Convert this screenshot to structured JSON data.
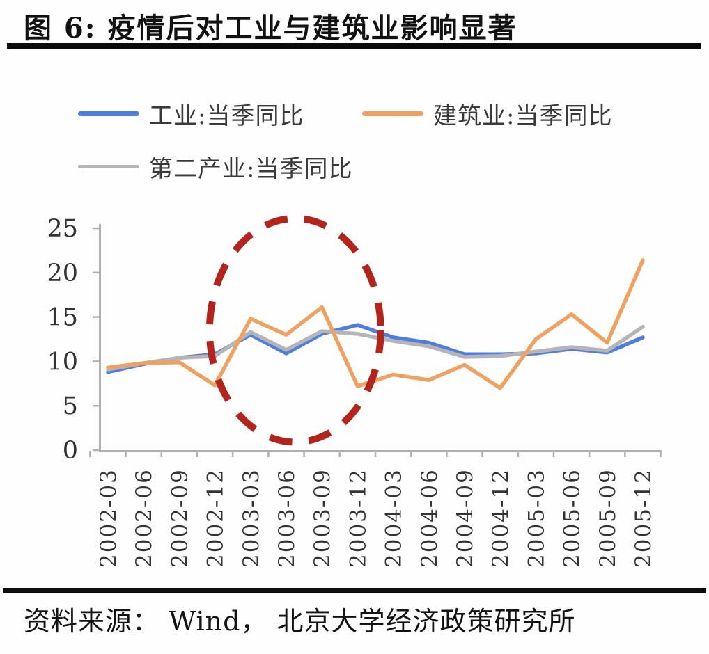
{
  "title": "图 6: 疫情后对工业与建筑业影响显著",
  "source": "资料来源： Wind， 北京大学经济政策研究所",
  "legend": [
    {
      "label": "工业:当季同比",
      "color": "#4f7ee0"
    },
    {
      "label": "建筑业:当季同比",
      "color": "#f0a061"
    },
    {
      "label": "第二产业:当季同比",
      "color": "#b5b5b5"
    }
  ],
  "chart_data": {
    "type": "line",
    "title": "疫情后对工业与建筑业影响显著",
    "xlabel": "",
    "ylabel": "",
    "ylim": [
      0,
      25
    ],
    "yticks": [
      0,
      5,
      10,
      15,
      20,
      25
    ],
    "grid": false,
    "legend_position": "top-left",
    "axis_color": "#b0b0b0",
    "tick_label_color": "#333333",
    "categories": [
      "2002-03",
      "2002-06",
      "2002-09",
      "2002-12",
      "2003-03",
      "2003-06",
      "2003-09",
      "2003-12",
      "2004-03",
      "2004-06",
      "2004-09",
      "2004-12",
      "2005-03",
      "2005-06",
      "2005-09",
      "2005-12"
    ],
    "series": [
      {
        "name": "工业:当季同比",
        "color": "#4f7ee0",
        "values": [
          8.8,
          9.7,
          10.4,
          10.8,
          13.0,
          10.9,
          13.1,
          14.1,
          12.7,
          12.1,
          10.8,
          10.8,
          10.9,
          11.4,
          11.0,
          12.7
        ]
      },
      {
        "name": "第二产业:当季同比",
        "color": "#b5b5b5",
        "values": [
          9.1,
          9.8,
          10.4,
          10.6,
          13.3,
          11.3,
          13.4,
          13.1,
          12.3,
          11.7,
          10.5,
          10.6,
          11.1,
          11.6,
          11.2,
          13.9
        ]
      },
      {
        "name": "建筑业:当季同比",
        "color": "#f0a061",
        "values": [
          9.3,
          9.8,
          9.9,
          7.3,
          14.8,
          13.0,
          16.1,
          7.2,
          8.5,
          7.9,
          9.6,
          7.0,
          12.5,
          15.3,
          12.1,
          21.4
        ]
      }
    ],
    "annotation": {
      "shape": "dashed-ellipse",
      "color": "#b2241c",
      "meaning": "SARS疫情时期 (highlighted 2003 quarters)",
      "center_category_index": 5.25,
      "center_value": 13.5,
      "radius_in_categories": 2.4,
      "radius_in_value": 12.6
    }
  }
}
